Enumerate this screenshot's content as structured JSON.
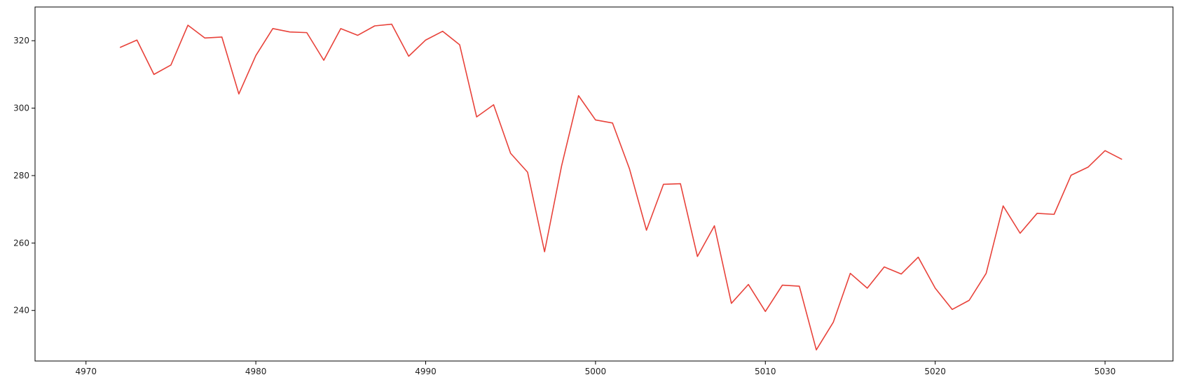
{
  "chart_data": {
    "type": "line",
    "title": "",
    "xlabel": "",
    "ylabel": "",
    "xlim": [
      4967,
      5034
    ],
    "ylim": [
      225,
      330
    ],
    "grid": false,
    "x_ticks": [
      4970,
      4980,
      4990,
      5000,
      5010,
      5020,
      5030
    ],
    "y_ticks": [
      240,
      260,
      280,
      300,
      320
    ],
    "series": [
      {
        "color": "#e8423a",
        "x": [
          4972,
          4973,
          4974,
          4975,
          4976,
          4977,
          4978,
          4979,
          4980,
          4981,
          4982,
          4983,
          4984,
          4985,
          4986,
          4987,
          4988,
          4989,
          4990,
          4991,
          4992,
          4993,
          4994,
          4995,
          4996,
          4997,
          4998,
          4999,
          5000,
          5001,
          5002,
          5003,
          5004,
          5005,
          5006,
          5007,
          5008,
          5009,
          5010,
          5011,
          5012,
          5013,
          5014,
          5015,
          5016,
          5017,
          5018,
          5019,
          5020,
          5021,
          5022,
          5023,
          5024,
          5025,
          5026,
          5027,
          5028,
          5029,
          5030,
          5031
        ],
        "y": [
          318.0,
          320.2,
          310.0,
          312.8,
          324.6,
          320.8,
          321.1,
          304.2,
          315.6,
          323.6,
          322.6,
          322.4,
          314.2,
          323.6,
          321.6,
          324.4,
          324.9,
          315.4,
          320.2,
          322.8,
          318.8,
          297.4,
          301.0,
          286.6,
          281.0,
          257.4,
          282.8,
          303.7,
          296.5,
          295.6,
          282.0,
          263.8,
          277.4,
          277.6,
          256.0,
          265.1,
          242.1,
          247.7,
          239.7,
          247.5,
          247.2,
          228.3,
          236.5,
          251.0,
          246.6,
          252.9,
          250.8,
          255.8,
          246.6,
          240.3,
          243.0,
          251.0,
          271.0,
          262.9,
          268.8,
          268.5,
          280.1,
          282.5,
          287.4,
          284.8
        ]
      }
    ]
  }
}
